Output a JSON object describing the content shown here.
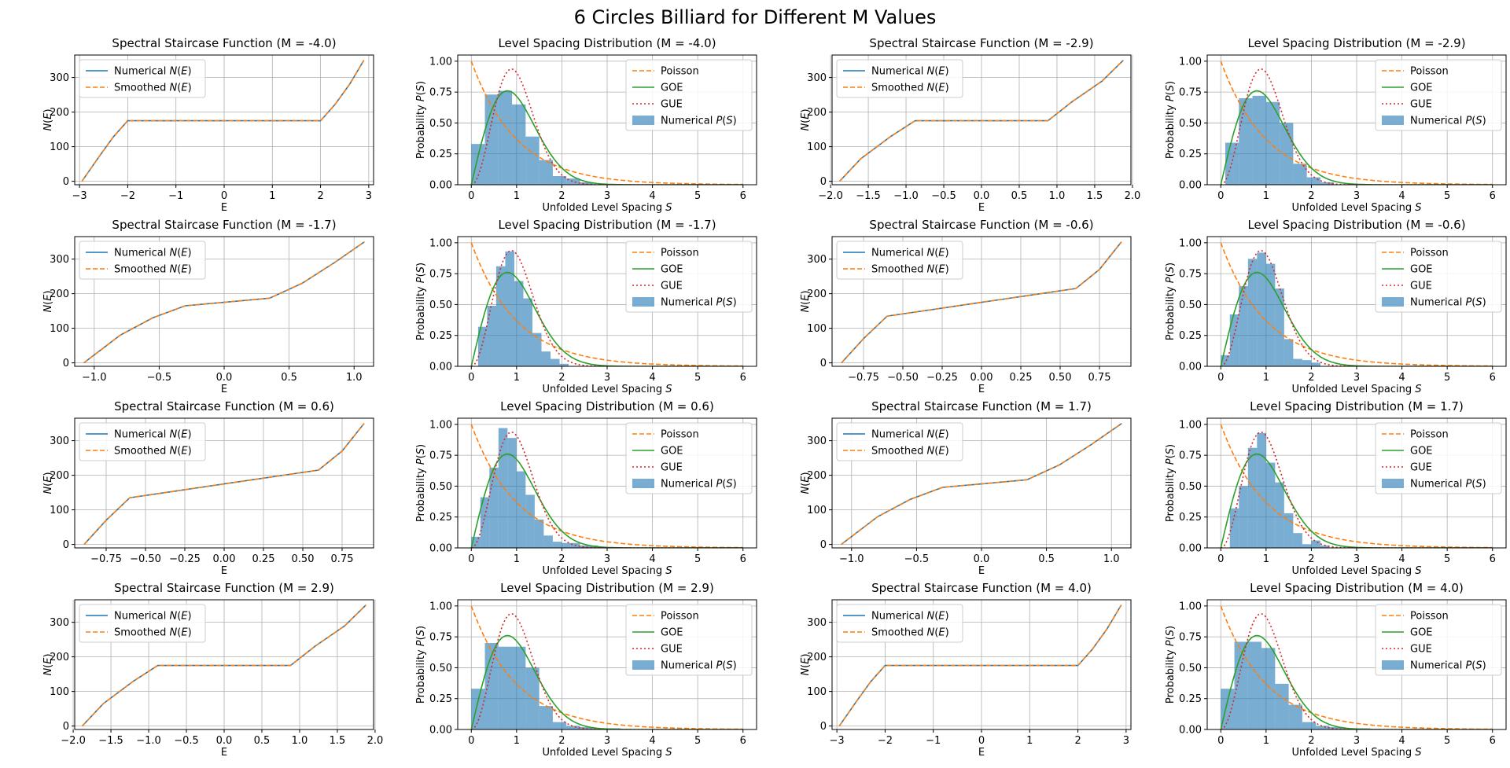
{
  "figure_title": "6 Circles Billiard for Different M Values",
  "colors": {
    "numerical": "#1f77b4",
    "smoothed": "#ff7f0e",
    "poisson": "#ff7f0e",
    "goe": "#2ca02c",
    "gue": "#d62728",
    "hist": "#1f77b4",
    "grid": "#b0b0b0"
  },
  "layout": "4 rows x 4 columns; each row holds two M values as (staircase, spacing) pairs",
  "chart_data": [
    {
      "type": "line",
      "kind": "staircase",
      "title": "Spectral Staircase Function (M = -4.0)",
      "xlabel": "E",
      "ylabel": "N(E)",
      "xlim": [
        -3.1,
        3.1
      ],
      "ylim": [
        -10,
        365
      ],
      "xticks": [
        -3,
        -2,
        -1,
        0,
        1,
        2,
        3
      ],
      "xticklabels": [
        "−3",
        "−2",
        "−1",
        "0",
        "1",
        "2",
        "3"
      ],
      "yticks": [
        0,
        100,
        200,
        300
      ],
      "grid": true,
      "legend_position": "upper-left",
      "legend": [
        "Numerical N(E)",
        "Smoothed N(E)"
      ],
      "points": [
        [
          -2.95,
          0
        ],
        [
          -2.6,
          70
        ],
        [
          -2.3,
          128
        ],
        [
          -2.0,
          175
        ],
        [
          2.0,
          175
        ],
        [
          2.3,
          222
        ],
        [
          2.6,
          280
        ],
        [
          2.9,
          350
        ]
      ]
    },
    {
      "type": "bar+line",
      "kind": "spacing",
      "title": "Level Spacing Distribution (M = -4.0)",
      "xlabel": "Unfolded Level Spacing S",
      "ylabel": "Probability P(S)",
      "xlim": [
        -0.3,
        6.3
      ],
      "ylim": [
        0,
        1.05
      ],
      "xticks": [
        0,
        1,
        2,
        3,
        4,
        5,
        6
      ],
      "yticks": [
        0,
        0.25,
        0.5,
        0.75,
        1.0
      ],
      "grid": true,
      "legend_position": "upper-right",
      "legend": [
        "Poisson",
        "GOE",
        "GUE",
        "Numerical P(S)"
      ],
      "hist_edges": [
        0,
        0.3,
        0.6,
        0.9,
        1.2,
        1.5,
        1.8,
        2.1,
        2.4,
        2.7
      ],
      "hist_values": [
        0.33,
        0.73,
        0.76,
        0.65,
        0.39,
        0.2,
        0.07,
        0.05,
        0.02
      ]
    },
    {
      "type": "line",
      "kind": "staircase",
      "title": "Spectral Staircase Function (M = -2.9)",
      "xlabel": "E",
      "ylabel": "N(E)",
      "xlim": [
        -1.98,
        1.98
      ],
      "ylim": [
        -10,
        365
      ],
      "xticks": [
        -2.0,
        -1.5,
        -1.0,
        -0.5,
        0.0,
        0.5,
        1.0,
        1.5,
        2.0
      ],
      "xticklabels": [
        "−2.0",
        "−1.5",
        "−1.0",
        "−0.5",
        "0.0",
        "0.5",
        "1.0",
        "1.5",
        "2.0"
      ],
      "yticks": [
        0,
        100,
        200,
        300
      ],
      "grid": true,
      "legend_position": "upper-left",
      "legend": [
        "Numerical N(E)",
        "Smoothed N(E)"
      ],
      "points": [
        [
          -1.88,
          0
        ],
        [
          -1.6,
          65
        ],
        [
          -1.2,
          130
        ],
        [
          -0.88,
          175
        ],
        [
          0.88,
          175
        ],
        [
          1.2,
          230
        ],
        [
          1.6,
          290
        ],
        [
          1.88,
          350
        ]
      ]
    },
    {
      "type": "bar+line",
      "kind": "spacing",
      "title": "Level Spacing Distribution (M = -2.9)",
      "xlabel": "Unfolded Level Spacing S",
      "ylabel": "Probability P(S)",
      "xlim": [
        -0.3,
        6.3
      ],
      "ylim": [
        0,
        1.05
      ],
      "xticks": [
        0,
        1,
        2,
        3,
        4,
        5,
        6
      ],
      "yticks": [
        0,
        0.25,
        0.5,
        0.75,
        1.0
      ],
      "grid": true,
      "legend_position": "upper-right",
      "legend": [
        "Poisson",
        "GOE",
        "GUE",
        "Numerical P(S)"
      ],
      "hist_edges": [
        0.1,
        0.4,
        0.7,
        1.0,
        1.3,
        1.6,
        1.9,
        2.2,
        2.5
      ],
      "hist_values": [
        0.34,
        0.7,
        0.72,
        0.67,
        0.5,
        0.17,
        0.06,
        0.02
      ]
    },
    {
      "type": "line",
      "kind": "staircase",
      "title": "Spectral Staircase Function (M = -1.7)",
      "xlabel": "E",
      "ylabel": "N(E)",
      "xlim": [
        -1.15,
        1.15
      ],
      "ylim": [
        -10,
        365
      ],
      "xticks": [
        -1.0,
        -0.5,
        0.0,
        0.5,
        1.0
      ],
      "xticklabels": [
        "−1.0",
        "−0.5",
        "0.0",
        "0.5",
        "1.0"
      ],
      "yticks": [
        0,
        100,
        200,
        300
      ],
      "grid": true,
      "legend_position": "upper-left",
      "legend": [
        "Numerical N(E)",
        "Smoothed N(E)"
      ],
      "points": [
        [
          -1.08,
          0
        ],
        [
          -0.8,
          80
        ],
        [
          -0.55,
          130
        ],
        [
          -0.3,
          165
        ],
        [
          0,
          175
        ],
        [
          0.35,
          187
        ],
        [
          0.6,
          230
        ],
        [
          0.85,
          290
        ],
        [
          1.08,
          350
        ]
      ]
    },
    {
      "type": "bar+line",
      "kind": "spacing",
      "title": "Level Spacing Distribution (M = -1.7)",
      "xlabel": "Unfolded Level Spacing S",
      "ylabel": "Probability P(S)",
      "xlim": [
        -0.3,
        6.3
      ],
      "ylim": [
        0,
        1.05
      ],
      "xticks": [
        0,
        1,
        2,
        3,
        4,
        5,
        6
      ],
      "yticks": [
        0,
        0.25,
        0.5,
        0.75,
        1.0
      ],
      "grid": true,
      "legend_position": "upper-right",
      "legend": [
        "Poisson",
        "GOE",
        "GUE",
        "Numerical P(S)"
      ],
      "hist_edges": [
        0.15,
        0.35,
        0.55,
        0.75,
        0.95,
        1.15,
        1.35,
        1.55,
        1.75,
        1.95,
        2.15
      ],
      "hist_values": [
        0.32,
        0.49,
        0.81,
        0.93,
        0.69,
        0.55,
        0.27,
        0.12,
        0.06,
        0.02
      ]
    },
    {
      "type": "line",
      "kind": "staircase",
      "title": "Spectral Staircase Function (M = -0.6)",
      "xlabel": "E",
      "ylabel": "N(E)",
      "xlim": [
        -0.95,
        0.95
      ],
      "ylim": [
        -10,
        365
      ],
      "xticks": [
        -0.75,
        -0.5,
        -0.25,
        0.0,
        0.25,
        0.5,
        0.75
      ],
      "xticklabels": [
        "−0.75",
        "−0.50",
        "−0.25",
        "0.00",
        "0.25",
        "0.50",
        "0.75"
      ],
      "yticks": [
        0,
        100,
        200,
        300
      ],
      "grid": true,
      "legend_position": "upper-left",
      "legend": [
        "Numerical N(E)",
        "Smoothed N(E)"
      ],
      "points": [
        [
          -0.89,
          0
        ],
        [
          -0.75,
          70
        ],
        [
          -0.6,
          135
        ],
        [
          -0.3,
          155
        ],
        [
          0,
          175
        ],
        [
          0.3,
          195
        ],
        [
          0.6,
          215
        ],
        [
          0.75,
          270
        ],
        [
          0.89,
          350
        ]
      ]
    },
    {
      "type": "bar+line",
      "kind": "spacing",
      "title": "Level Spacing Distribution (M = -0.6)",
      "xlabel": "Unfolded Level Spacing S",
      "ylabel": "Probability P(S)",
      "xlim": [
        -0.3,
        6.3
      ],
      "ylim": [
        0,
        1.05
      ],
      "xticks": [
        0,
        1,
        2,
        3,
        4,
        5,
        6
      ],
      "yticks": [
        0,
        0.25,
        0.5,
        0.75,
        1.0
      ],
      "grid": true,
      "legend_position": "upper-right",
      "legend": [
        "Poisson",
        "GOE",
        "GUE",
        "Numerical P(S)"
      ],
      "hist_edges": [
        0.0,
        0.2,
        0.4,
        0.6,
        0.8,
        1.0,
        1.2,
        1.4,
        1.6,
        1.8,
        2.0,
        2.2
      ],
      "hist_values": [
        0.09,
        0.42,
        0.65,
        0.87,
        0.92,
        0.83,
        0.63,
        0.22,
        0.06,
        0.05,
        0.03
      ]
    },
    {
      "type": "line",
      "kind": "staircase",
      "title": "Spectral Staircase Function (M = 0.6)",
      "xlabel": "E",
      "ylabel": "N(E)",
      "xlim": [
        -0.95,
        0.95
      ],
      "ylim": [
        -10,
        365
      ],
      "xticks": [
        -0.75,
        -0.5,
        -0.25,
        0.0,
        0.25,
        0.5,
        0.75
      ],
      "xticklabels": [
        "−0.75",
        "−0.50",
        "−0.25",
        "0.00",
        "0.25",
        "0.50",
        "0.75"
      ],
      "yticks": [
        0,
        100,
        200,
        300
      ],
      "grid": true,
      "legend_position": "upper-left",
      "legend": [
        "Numerical N(E)",
        "Smoothed N(E)"
      ],
      "points": [
        [
          -0.89,
          0
        ],
        [
          -0.75,
          70
        ],
        [
          -0.6,
          135
        ],
        [
          -0.3,
          155
        ],
        [
          0,
          175
        ],
        [
          0.3,
          195
        ],
        [
          0.6,
          215
        ],
        [
          0.75,
          270
        ],
        [
          0.89,
          350
        ]
      ]
    },
    {
      "type": "bar+line",
      "kind": "spacing",
      "title": "Level Spacing Distribution (M = 0.6)",
      "xlabel": "Unfolded Level Spacing S",
      "ylabel": "Probability P(S)",
      "xlim": [
        -0.3,
        6.3
      ],
      "ylim": [
        0,
        1.05
      ],
      "xticks": [
        0,
        1,
        2,
        3,
        4,
        5,
        6
      ],
      "yticks": [
        0,
        0.25,
        0.5,
        0.75,
        1.0
      ],
      "grid": true,
      "legend_position": "upper-right",
      "legend": [
        "Poisson",
        "GOE",
        "GUE",
        "Numerical P(S)"
      ],
      "hist_edges": [
        0.0,
        0.2,
        0.4,
        0.6,
        0.8,
        1.0,
        1.2,
        1.4,
        1.6,
        1.8,
        2.0,
        2.4,
        2.8
      ],
      "hist_values": [
        0.09,
        0.41,
        0.65,
        0.97,
        0.89,
        0.62,
        0.43,
        0.23,
        0.1,
        0.05,
        0.04,
        0.02
      ]
    },
    {
      "type": "line",
      "kind": "staircase",
      "title": "Spectral Staircase Function (M = 1.7)",
      "xlabel": "E",
      "ylabel": "N(E)",
      "xlim": [
        -1.15,
        1.15
      ],
      "ylim": [
        -10,
        365
      ],
      "xticks": [
        -1.0,
        -0.5,
        0.0,
        0.5,
        1.0
      ],
      "xticklabels": [
        "−1.0",
        "−0.5",
        "0.0",
        "0.5",
        "1.0"
      ],
      "yticks": [
        0,
        100,
        200,
        300
      ],
      "grid": true,
      "legend_position": "upper-left",
      "legend": [
        "Numerical N(E)",
        "Smoothed N(E)"
      ],
      "points": [
        [
          -1.08,
          0
        ],
        [
          -0.8,
          80
        ],
        [
          -0.55,
          130
        ],
        [
          -0.3,
          165
        ],
        [
          0,
          175
        ],
        [
          0.35,
          187
        ],
        [
          0.6,
          230
        ],
        [
          0.85,
          290
        ],
        [
          1.08,
          350
        ]
      ]
    },
    {
      "type": "bar+line",
      "kind": "spacing",
      "title": "Level Spacing Distribution (M = 1.7)",
      "xlabel": "Unfolded Level Spacing S",
      "ylabel": "Probability P(S)",
      "xlim": [
        -0.3,
        6.3
      ],
      "ylim": [
        0,
        1.05
      ],
      "xticks": [
        0,
        1,
        2,
        3,
        4,
        5,
        6
      ],
      "yticks": [
        0,
        0.25,
        0.5,
        0.75,
        1.0
      ],
      "grid": true,
      "legend_position": "upper-right",
      "legend": [
        "Poisson",
        "GOE",
        "GUE",
        "Numerical P(S)"
      ],
      "hist_edges": [
        0.2,
        0.4,
        0.6,
        0.8,
        1.0,
        1.2,
        1.4,
        1.6,
        1.8,
        2.0,
        2.2,
        2.4
      ],
      "hist_values": [
        0.32,
        0.5,
        0.81,
        0.93,
        0.69,
        0.53,
        0.28,
        0.12,
        0.03,
        0.06,
        0.02
      ]
    },
    {
      "type": "line",
      "kind": "staircase",
      "title": "Spectral Staircase Function (M = 2.9)",
      "xlabel": "E",
      "ylabel": "N(E)",
      "xlim": [
        -1.98,
        1.98
      ],
      "ylim": [
        -10,
        365
      ],
      "xticks": [
        -2.0,
        -1.5,
        -1.0,
        -0.5,
        0.0,
        0.5,
        1.0,
        1.5,
        2.0
      ],
      "xticklabels": [
        "−2.0",
        "−1.5",
        "−1.0",
        "−0.5",
        "0.0",
        "0.5",
        "1.0",
        "1.5",
        "2.0"
      ],
      "yticks": [
        0,
        100,
        200,
        300
      ],
      "grid": true,
      "legend_position": "upper-left",
      "legend": [
        "Numerical N(E)",
        "Smoothed N(E)"
      ],
      "points": [
        [
          -1.88,
          0
        ],
        [
          -1.6,
          65
        ],
        [
          -1.2,
          130
        ],
        [
          -0.88,
          175
        ],
        [
          0.88,
          175
        ],
        [
          1.2,
          230
        ],
        [
          1.6,
          290
        ],
        [
          1.88,
          350
        ]
      ]
    },
    {
      "type": "bar+line",
      "kind": "spacing",
      "title": "Level Spacing Distribution (M = 2.9)",
      "xlabel": "Unfolded Level Spacing S",
      "ylabel": "Probability P(S)",
      "xlim": [
        -0.3,
        6.3
      ],
      "ylim": [
        0,
        1.05
      ],
      "xticks": [
        0,
        1,
        2,
        3,
        4,
        5,
        6
      ],
      "yticks": [
        0,
        0.25,
        0.5,
        0.75,
        1.0
      ],
      "grid": true,
      "legend_position": "upper-right",
      "legend": [
        "Poisson",
        "GOE",
        "GUE",
        "Numerical P(S)"
      ],
      "hist_edges": [
        0.0,
        0.3,
        0.6,
        0.9,
        1.2,
        1.5,
        1.8,
        2.1,
        2.4,
        2.7,
        3.0,
        3.3
      ],
      "hist_values": [
        0.33,
        0.7,
        0.67,
        0.67,
        0.5,
        0.19,
        0.06,
        0.03,
        0.02,
        0.01,
        0.01
      ]
    },
    {
      "type": "line",
      "kind": "staircase",
      "title": "Spectral Staircase Function (M = 4.0)",
      "xlabel": "E",
      "ylabel": "N(E)",
      "xlim": [
        -3.1,
        3.1
      ],
      "ylim": [
        -10,
        365
      ],
      "xticks": [
        -3,
        -2,
        -1,
        0,
        1,
        2,
        3
      ],
      "xticklabels": [
        "−3",
        "−2",
        "−1",
        "0",
        "1",
        "2",
        "3"
      ],
      "yticks": [
        0,
        100,
        200,
        300
      ],
      "grid": true,
      "legend_position": "upper-left",
      "legend": [
        "Numerical N(E)",
        "Smoothed N(E)"
      ],
      "points": [
        [
          -2.95,
          0
        ],
        [
          -2.6,
          70
        ],
        [
          -2.3,
          128
        ],
        [
          -2.0,
          175
        ],
        [
          2.0,
          175
        ],
        [
          2.3,
          222
        ],
        [
          2.6,
          280
        ],
        [
          2.9,
          350
        ]
      ]
    },
    {
      "type": "bar+line",
      "kind": "spacing",
      "title": "Level Spacing Distribution (M = 4.0)",
      "xlabel": "Unfolded Level Spacing S",
      "ylabel": "Probability P(S)",
      "xlim": [
        -0.3,
        6.3
      ],
      "ylim": [
        0,
        1.05
      ],
      "xticks": [
        0,
        1,
        2,
        3,
        4,
        5,
        6
      ],
      "yticks": [
        0,
        0.25,
        0.5,
        0.75,
        1.0
      ],
      "grid": true,
      "legend_position": "upper-right",
      "legend": [
        "Poisson",
        "GOE",
        "GUE",
        "Numerical P(S)"
      ],
      "hist_edges": [
        0.0,
        0.3,
        0.6,
        0.9,
        1.2,
        1.5,
        1.8,
        2.1,
        2.4,
        2.7,
        3.0,
        3.3
      ],
      "hist_values": [
        0.33,
        0.71,
        0.71,
        0.66,
        0.37,
        0.2,
        0.06,
        0.03,
        0.02,
        0.01,
        0.01
      ]
    }
  ]
}
